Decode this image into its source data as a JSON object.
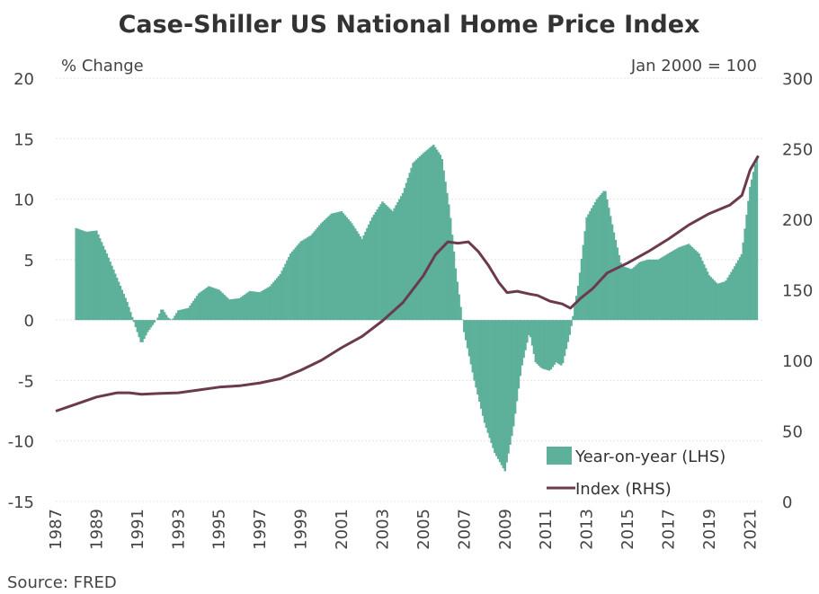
{
  "chart_data": {
    "type": "area+line",
    "title": "Case-Shiller US National Home Price Index",
    "left_axis": {
      "unit_label": "% Change",
      "ylim": [
        -15,
        20
      ],
      "ticks": [
        "20",
        "15",
        "10",
        "5",
        "0",
        "-5",
        "-10",
        "-15"
      ]
    },
    "right_axis": {
      "unit_label": "Jan 2000 = 100",
      "ylim": [
        0,
        300
      ],
      "ticks": [
        "300",
        "250",
        "200",
        "150",
        "100",
        "50",
        "0"
      ]
    },
    "x_axis": {
      "xlim": [
        1987,
        2021.6
      ],
      "ticks": [
        "1987",
        "1989",
        "1991",
        "1993",
        "1995",
        "1997",
        "1999",
        "2001",
        "2003",
        "2005",
        "2007",
        "2009",
        "2011",
        "2013",
        "2015",
        "2017",
        "2019",
        "2021"
      ]
    },
    "grid": true,
    "legend_position": "bottom-right",
    "series": [
      {
        "name": "Year-on-year (LHS)",
        "axis": "left",
        "kind": "area",
        "color": "#5db09a",
        "points": [
          [
            1988.0,
            7.6
          ],
          [
            1988.5,
            7.3
          ],
          [
            1989.0,
            7.4
          ],
          [
            1989.5,
            5.5
          ],
          [
            1990.0,
            3.5
          ],
          [
            1990.5,
            1.5
          ],
          [
            1990.9,
            -0.5
          ],
          [
            1991.2,
            -2.0
          ],
          [
            1991.5,
            -1.0
          ],
          [
            1991.8,
            -0.3
          ],
          [
            1992.0,
            0.2
          ],
          [
            1992.2,
            1.0
          ],
          [
            1992.5,
            0.2
          ],
          [
            1992.7,
            0.0
          ],
          [
            1993.0,
            0.8
          ],
          [
            1993.5,
            1.0
          ],
          [
            1994.0,
            2.2
          ],
          [
            1994.5,
            2.8
          ],
          [
            1995.0,
            2.5
          ],
          [
            1995.5,
            1.7
          ],
          [
            1996.0,
            1.8
          ],
          [
            1996.5,
            2.4
          ],
          [
            1997.0,
            2.3
          ],
          [
            1997.5,
            2.8
          ],
          [
            1998.0,
            3.8
          ],
          [
            1998.5,
            5.5
          ],
          [
            1999.0,
            6.5
          ],
          [
            1999.5,
            7.0
          ],
          [
            2000.0,
            8.0
          ],
          [
            2000.5,
            8.8
          ],
          [
            2001.0,
            9.0
          ],
          [
            2001.5,
            8.0
          ],
          [
            2002.0,
            6.7
          ],
          [
            2002.5,
            8.5
          ],
          [
            2003.0,
            9.8
          ],
          [
            2003.5,
            9.0
          ],
          [
            2004.0,
            10.5
          ],
          [
            2004.5,
            13.0
          ],
          [
            2005.0,
            13.8
          ],
          [
            2005.5,
            14.5
          ],
          [
            2005.9,
            13.5
          ],
          [
            2006.3,
            9.0
          ],
          [
            2006.6,
            4.0
          ],
          [
            2007.0,
            -1.0
          ],
          [
            2007.5,
            -5.0
          ],
          [
            2008.0,
            -8.5
          ],
          [
            2008.5,
            -11.0
          ],
          [
            2009.0,
            -12.5
          ],
          [
            2009.4,
            -9.0
          ],
          [
            2009.8,
            -4.0
          ],
          [
            2010.2,
            -1.0
          ],
          [
            2010.5,
            -3.5
          ],
          [
            2010.8,
            -4.0
          ],
          [
            2011.2,
            -4.2
          ],
          [
            2011.5,
            -3.5
          ],
          [
            2011.8,
            -3.8
          ],
          [
            2012.2,
            -1.0
          ],
          [
            2012.6,
            3.0
          ],
          [
            2013.0,
            8.5
          ],
          [
            2013.5,
            10.0
          ],
          [
            2013.9,
            10.8
          ],
          [
            2014.3,
            7.5
          ],
          [
            2014.7,
            4.5
          ],
          [
            2015.2,
            4.2
          ],
          [
            2015.6,
            4.8
          ],
          [
            2016.0,
            5.0
          ],
          [
            2016.5,
            5.0
          ],
          [
            2017.0,
            5.5
          ],
          [
            2017.5,
            6.0
          ],
          [
            2018.0,
            6.3
          ],
          [
            2018.5,
            5.5
          ],
          [
            2019.0,
            3.7
          ],
          [
            2019.4,
            3.0
          ],
          [
            2019.8,
            3.2
          ],
          [
            2020.2,
            4.3
          ],
          [
            2020.6,
            5.5
          ],
          [
            2021.0,
            11.0
          ],
          [
            2021.4,
            14.0
          ]
        ]
      },
      {
        "name": "Index (RHS)",
        "axis": "right",
        "kind": "line",
        "color": "#6b3a4f",
        "points": [
          [
            1987.0,
            64
          ],
          [
            1988.0,
            69
          ],
          [
            1989.0,
            74
          ],
          [
            1990.0,
            77
          ],
          [
            1990.6,
            77
          ],
          [
            1991.2,
            76
          ],
          [
            1992.0,
            76.5
          ],
          [
            1993.0,
            77
          ],
          [
            1994.0,
            79
          ],
          [
            1995.0,
            81
          ],
          [
            1996.0,
            82
          ],
          [
            1997.0,
            84
          ],
          [
            1998.0,
            87
          ],
          [
            1999.0,
            93
          ],
          [
            2000.0,
            100
          ],
          [
            2001.0,
            109
          ],
          [
            2002.0,
            117
          ],
          [
            2003.0,
            128
          ],
          [
            2004.0,
            141
          ],
          [
            2005.0,
            160
          ],
          [
            2005.6,
            175
          ],
          [
            2006.2,
            184
          ],
          [
            2006.7,
            183
          ],
          [
            2007.2,
            184
          ],
          [
            2007.7,
            177
          ],
          [
            2008.2,
            167
          ],
          [
            2008.7,
            155
          ],
          [
            2009.1,
            148
          ],
          [
            2009.6,
            149
          ],
          [
            2010.2,
            147
          ],
          [
            2010.6,
            146
          ],
          [
            2011.2,
            142
          ],
          [
            2011.8,
            140
          ],
          [
            2012.2,
            137
          ],
          [
            2012.7,
            144
          ],
          [
            2013.3,
            151
          ],
          [
            2014.0,
            162
          ],
          [
            2015.0,
            169
          ],
          [
            2016.0,
            177
          ],
          [
            2017.0,
            186
          ],
          [
            2018.0,
            196
          ],
          [
            2019.0,
            204
          ],
          [
            2020.0,
            210
          ],
          [
            2020.6,
            217
          ],
          [
            2021.0,
            235
          ],
          [
            2021.4,
            245
          ]
        ]
      }
    ]
  },
  "source": "Source: FRED"
}
